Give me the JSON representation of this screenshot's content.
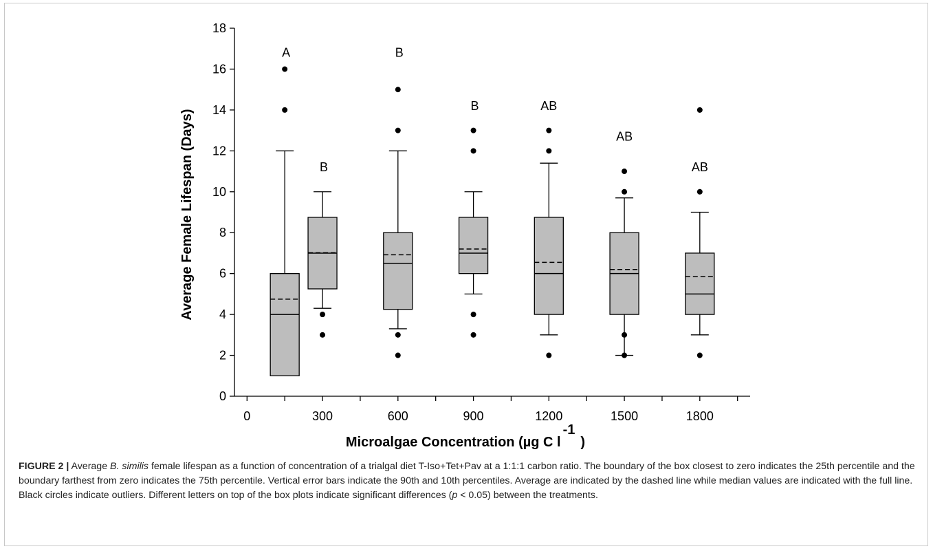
{
  "caption": {
    "label": "FIGURE 2 |",
    "segments": [
      {
        "text": " Average ",
        "italic": false
      },
      {
        "text": "B. similis",
        "italic": true
      },
      {
        "text": " female lifespan as a function of concentration of a trialgal diet T-Iso+Tet+Pav at a 1:1:1 carbon ratio. The boundary of the box closest to zero indicates the 25th percentile and the boundary farthest from zero indicates the 75th percentile. Vertical error bars indicate the 90th and 10th percentiles. Average are indicated by the dashed line while median values are indicated with the full line. Black circles indicate outliers. Different letters on top of the box plots indicate significant differences (",
        "italic": false
      },
      {
        "text": "p",
        "italic": true
      },
      {
        "text": " < 0.05) between the treatments.",
        "italic": false
      }
    ]
  },
  "chart_data": {
    "type": "box",
    "xlabel": "Microalgae Concentration (µg C l",
    "xlabel_superscript": "-1",
    "xlabel_close": ")",
    "ylabel": "Average Female Lifespan (Days)",
    "xlim": [
      -50,
      2000
    ],
    "ylim": [
      0,
      18
    ],
    "x_ticks": [
      0,
      300,
      600,
      900,
      1200,
      1500,
      1800
    ],
    "x_tick_labels": [
      "0",
      "300",
      "600",
      "900",
      "1200",
      "1500",
      "1800"
    ],
    "x_minor_ticks": [
      150,
      450,
      750,
      1050,
      1350,
      1650,
      1950
    ],
    "y_ticks": [
      0,
      2,
      4,
      6,
      8,
      10,
      12,
      14,
      16,
      18
    ],
    "y_tick_labels": [
      "0",
      "2",
      "4",
      "6",
      "8",
      "10",
      "12",
      "14",
      "16",
      "18"
    ],
    "box_fill": "#bdbdbd",
    "boxes": [
      {
        "x": 150,
        "whisker_low": 1,
        "q1": 1,
        "median": 4,
        "mean": 4.75,
        "q3": 6,
        "whisker_high": 12,
        "outliers": [
          14,
          16
        ],
        "letter": "A",
        "letter_y": 16.8
      },
      {
        "x": 300,
        "whisker_low": 4.3,
        "q1": 5.25,
        "median": 7,
        "mean": 7.02,
        "q3": 8.75,
        "whisker_high": 10,
        "outliers": [
          3,
          4
        ],
        "letter": "B",
        "letter_y": 11.2
      },
      {
        "x": 600,
        "whisker_low": 3.3,
        "q1": 4.25,
        "median": 6.5,
        "mean": 6.92,
        "q3": 8,
        "whisker_high": 12,
        "outliers": [
          2,
          3,
          13,
          15
        ],
        "letter": "B",
        "letter_y": 16.8
      },
      {
        "x": 900,
        "whisker_low": 5,
        "q1": 6,
        "median": 7,
        "mean": 7.2,
        "q3": 8.75,
        "whisker_high": 10,
        "outliers": [
          3,
          4,
          12,
          13
        ],
        "letter": "B",
        "letter_y": 14.2
      },
      {
        "x": 1200,
        "whisker_low": 3,
        "q1": 4,
        "median": 6,
        "mean": 6.55,
        "q3": 8.75,
        "whisker_high": 11.4,
        "outliers": [
          2,
          12,
          13
        ],
        "letter": "AB",
        "letter_y": 14.2
      },
      {
        "x": 1500,
        "whisker_low": 2,
        "q1": 4,
        "median": 6,
        "mean": 6.2,
        "q3": 8,
        "whisker_high": 9.7,
        "outliers": [
          2,
          3,
          10,
          11
        ],
        "letter": "AB",
        "letter_y": 12.7
      },
      {
        "x": 1800,
        "whisker_low": 3,
        "q1": 4,
        "median": 5,
        "mean": 5.85,
        "q3": 7,
        "whisker_high": 9,
        "outliers": [
          2,
          10,
          14
        ],
        "letter": "AB",
        "letter_y": 11.2
      }
    ]
  }
}
